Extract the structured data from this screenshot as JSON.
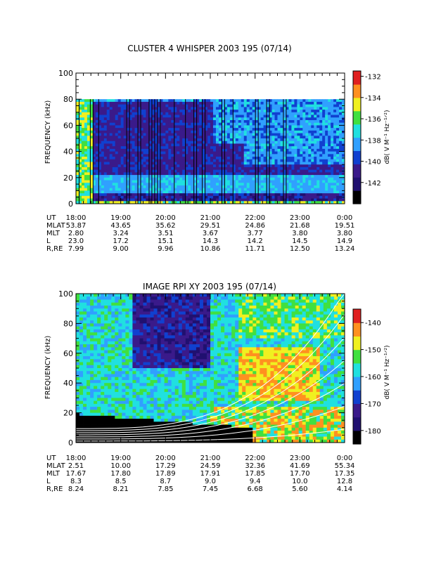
{
  "chart_data": [
    {
      "type": "heatmap",
      "title": "CLUSTER 4 WHISPER 2003 195 (07/14)",
      "ylabel": "FREQUENCY (kHz)",
      "ylim": [
        0,
        100
      ],
      "y_ticks": [
        0,
        20,
        40,
        60,
        80,
        100
      ],
      "data_ylim": [
        0,
        80
      ],
      "x_ticks": [
        "18:00",
        "19:00",
        "20:00",
        "21:00",
        "22:00",
        "23:00",
        "0:00"
      ],
      "colorbar": {
        "label": "dB( V M⁻¹ Hz⁻¹ᐟ²)",
        "range": [
          -144,
          -131.5
        ],
        "ticks": [
          -132,
          -134,
          -136,
          -138,
          -140,
          -142
        ]
      },
      "ephemeris": [
        {
          "name": "UT",
          "values": [
            "18:00",
            "19:00",
            "20:00",
            "21:00",
            "22:00",
            "23:00",
            "0:00"
          ]
        },
        {
          "name": "MLAT",
          "values": [
            "53.87",
            "43.65",
            "35.62",
            "29.51",
            "24.86",
            "21.68",
            "19.51"
          ]
        },
        {
          "name": "MLT",
          "values": [
            "2.80",
            "3.24",
            "3.51",
            "3.67",
            "3.77",
            "3.80",
            "3.80"
          ]
        },
        {
          "name": "L",
          "values": [
            "23.0",
            "17.2",
            "15.1",
            "14.3",
            "14.2",
            "14.5",
            "14.9"
          ]
        },
        {
          "name": "R,RE",
          "values": [
            "7.99",
            "9.00",
            "9.96",
            "10.86",
            "11.71",
            "12.50",
            "13.24"
          ]
        }
      ]
    },
    {
      "type": "heatmap",
      "title": "IMAGE RPI XY 2003 195 (07/14)",
      "ylabel": "FREQUENCY (kHz)",
      "ylim": [
        0,
        100
      ],
      "y_ticks": [
        0,
        20,
        40,
        60,
        80,
        100
      ],
      "x_ticks": [
        "18:00",
        "19:00",
        "20:00",
        "21:00",
        "22:00",
        "23:00",
        "0:00"
      ],
      "colorbar": {
        "label": "dB( V M⁻¹ Hz⁻¹ᐟ²)",
        "range": [
          -185,
          -135
        ],
        "ticks": [
          -140,
          -150,
          -160,
          -170,
          -180
        ]
      },
      "ephemeris": [
        {
          "name": "UT",
          "values": [
            "18:00",
            "19:00",
            "20:00",
            "21:00",
            "22:00",
            "23:00",
            "0:00"
          ]
        },
        {
          "name": "MLAT",
          "values": [
            "2.51",
            "10.00",
            "17.29",
            "24.59",
            "32.36",
            "41.69",
            "55.34"
          ]
        },
        {
          "name": "MLT",
          "values": [
            "17.67",
            "17.80",
            "17.89",
            "17.91",
            "17.85",
            "17.70",
            "17.35"
          ]
        },
        {
          "name": "L",
          "values": [
            "8.3",
            "8.5",
            "8.7",
            "9.0",
            "9.4",
            "10.0",
            "12.8"
          ]
        },
        {
          "name": "R,RE",
          "values": [
            "8.24",
            "8.21",
            "7.85",
            "7.45",
            "6.68",
            "5.60",
            "4.14"
          ]
        }
      ]
    }
  ],
  "colors": {
    "black": "#000000",
    "navy": "#201070",
    "purple": "#3a1a8a",
    "blue": "#1040d0",
    "lightblue": "#30a0ff",
    "cyan": "#20e0e0",
    "green": "#40e040",
    "yellow": "#f0f020",
    "orange": "#ff9020",
    "red": "#e02020",
    "white": "#ffffff"
  }
}
